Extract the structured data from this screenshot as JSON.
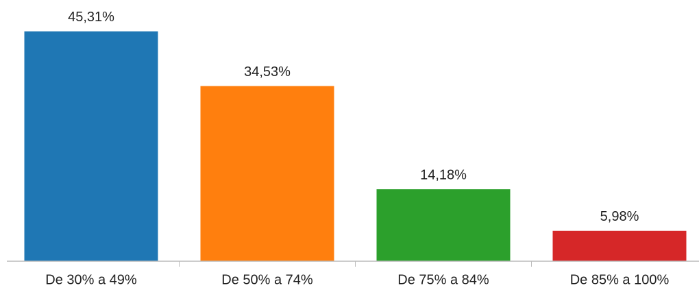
{
  "chart_data": {
    "type": "bar",
    "categories": [
      "De 30% a 49%",
      "De 50% a 74%",
      "De 75% a 84%",
      "De 85% a 100%"
    ],
    "values": [
      45.31,
      34.53,
      14.18,
      5.98
    ],
    "value_labels": [
      "45,31%",
      "34,53%",
      "14,18%",
      "5,98%"
    ],
    "colors": [
      "#1f77b4",
      "#ff7f0e",
      "#2ca02c",
      "#d62728"
    ],
    "ylim": [
      0,
      50
    ]
  }
}
